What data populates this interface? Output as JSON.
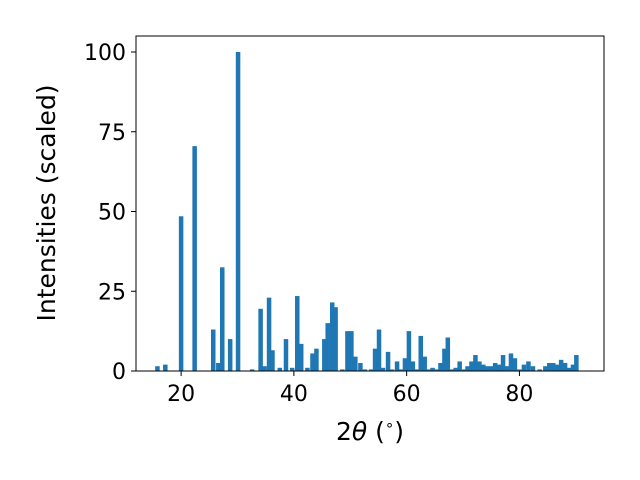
{
  "chart_data": {
    "type": "bar",
    "title": "",
    "xlabel_prefix": "2",
    "xlabel_symbol": "θ",
    "xlabel_suffix": " (",
    "xlabel_degree": "∘",
    "xlabel_close": ")",
    "ylabel": "Intensities (scaled)",
    "xlim": [
      12,
      95
    ],
    "ylim": [
      0,
      100
    ],
    "xticks": [
      20,
      40,
      60,
      80
    ],
    "yticks": [
      0,
      25,
      50,
      75,
      100
    ],
    "bar_color": "#1f77b4",
    "bar_width": 0.8,
    "grid": false,
    "x": [
      15.8,
      17.2,
      20.0,
      22.4,
      25.7,
      26.6,
      27.3,
      28.7,
      30.1,
      32.6,
      34.1,
      34.8,
      35.6,
      36.2,
      37.5,
      38.6,
      39.7,
      40.6,
      41.3,
      42.4,
      43.3,
      44.0,
      45.4,
      46.0,
      46.8,
      47.4,
      48.6,
      49.5,
      50.2,
      50.9,
      51.8,
      52.6,
      53.7,
      54.4,
      55.1,
      55.8,
      56.7,
      57.4,
      58.3,
      59.0,
      59.7,
      60.4,
      61.1,
      61.8,
      62.5,
      63.2,
      63.9,
      64.6,
      65.3,
      66.0,
      66.7,
      67.3,
      68.0,
      68.7,
      69.4,
      70.2,
      70.8,
      71.5,
      72.2,
      72.9,
      73.6,
      74.3,
      75.0,
      75.7,
      76.4,
      77.1,
      77.8,
      78.5,
      79.2,
      80.0,
      80.8,
      81.6,
      82.4,
      83.6,
      84.6,
      85.3,
      86.0,
      86.7,
      87.4,
      88.1,
      88.8,
      89.5,
      90.1
    ],
    "values": [
      1.5,
      2.0,
      48.5,
      70.5,
      13.0,
      2.5,
      32.5,
      10.0,
      100.0,
      0.5,
      19.5,
      1.5,
      23.0,
      6.5,
      1.0,
      10.0,
      1.0,
      23.5,
      8.5,
      1.0,
      5.5,
      7.0,
      10.0,
      15.0,
      21.5,
      20.0,
      0.5,
      12.5,
      12.5,
      4.5,
      2.5,
      0.5,
      0.5,
      7.0,
      13.0,
      1.0,
      6.0,
      0.5,
      3.0,
      0.5,
      4.0,
      12.5,
      3.0,
      0.5,
      11.0,
      4.5,
      0.5,
      1.0,
      0.5,
      2.5,
      7.0,
      10.5,
      0.5,
      1.0,
      3.0,
      0.5,
      1.5,
      3.0,
      5.0,
      3.0,
      2.0,
      1.5,
      1.5,
      2.5,
      2.0,
      5.0,
      1.5,
      5.5,
      4.0,
      0.5,
      2.0,
      3.0,
      1.5,
      0.5,
      1.5,
      2.5,
      2.5,
      2.0,
      3.5,
      2.5,
      1.0,
      2.0,
      5.0
    ]
  }
}
